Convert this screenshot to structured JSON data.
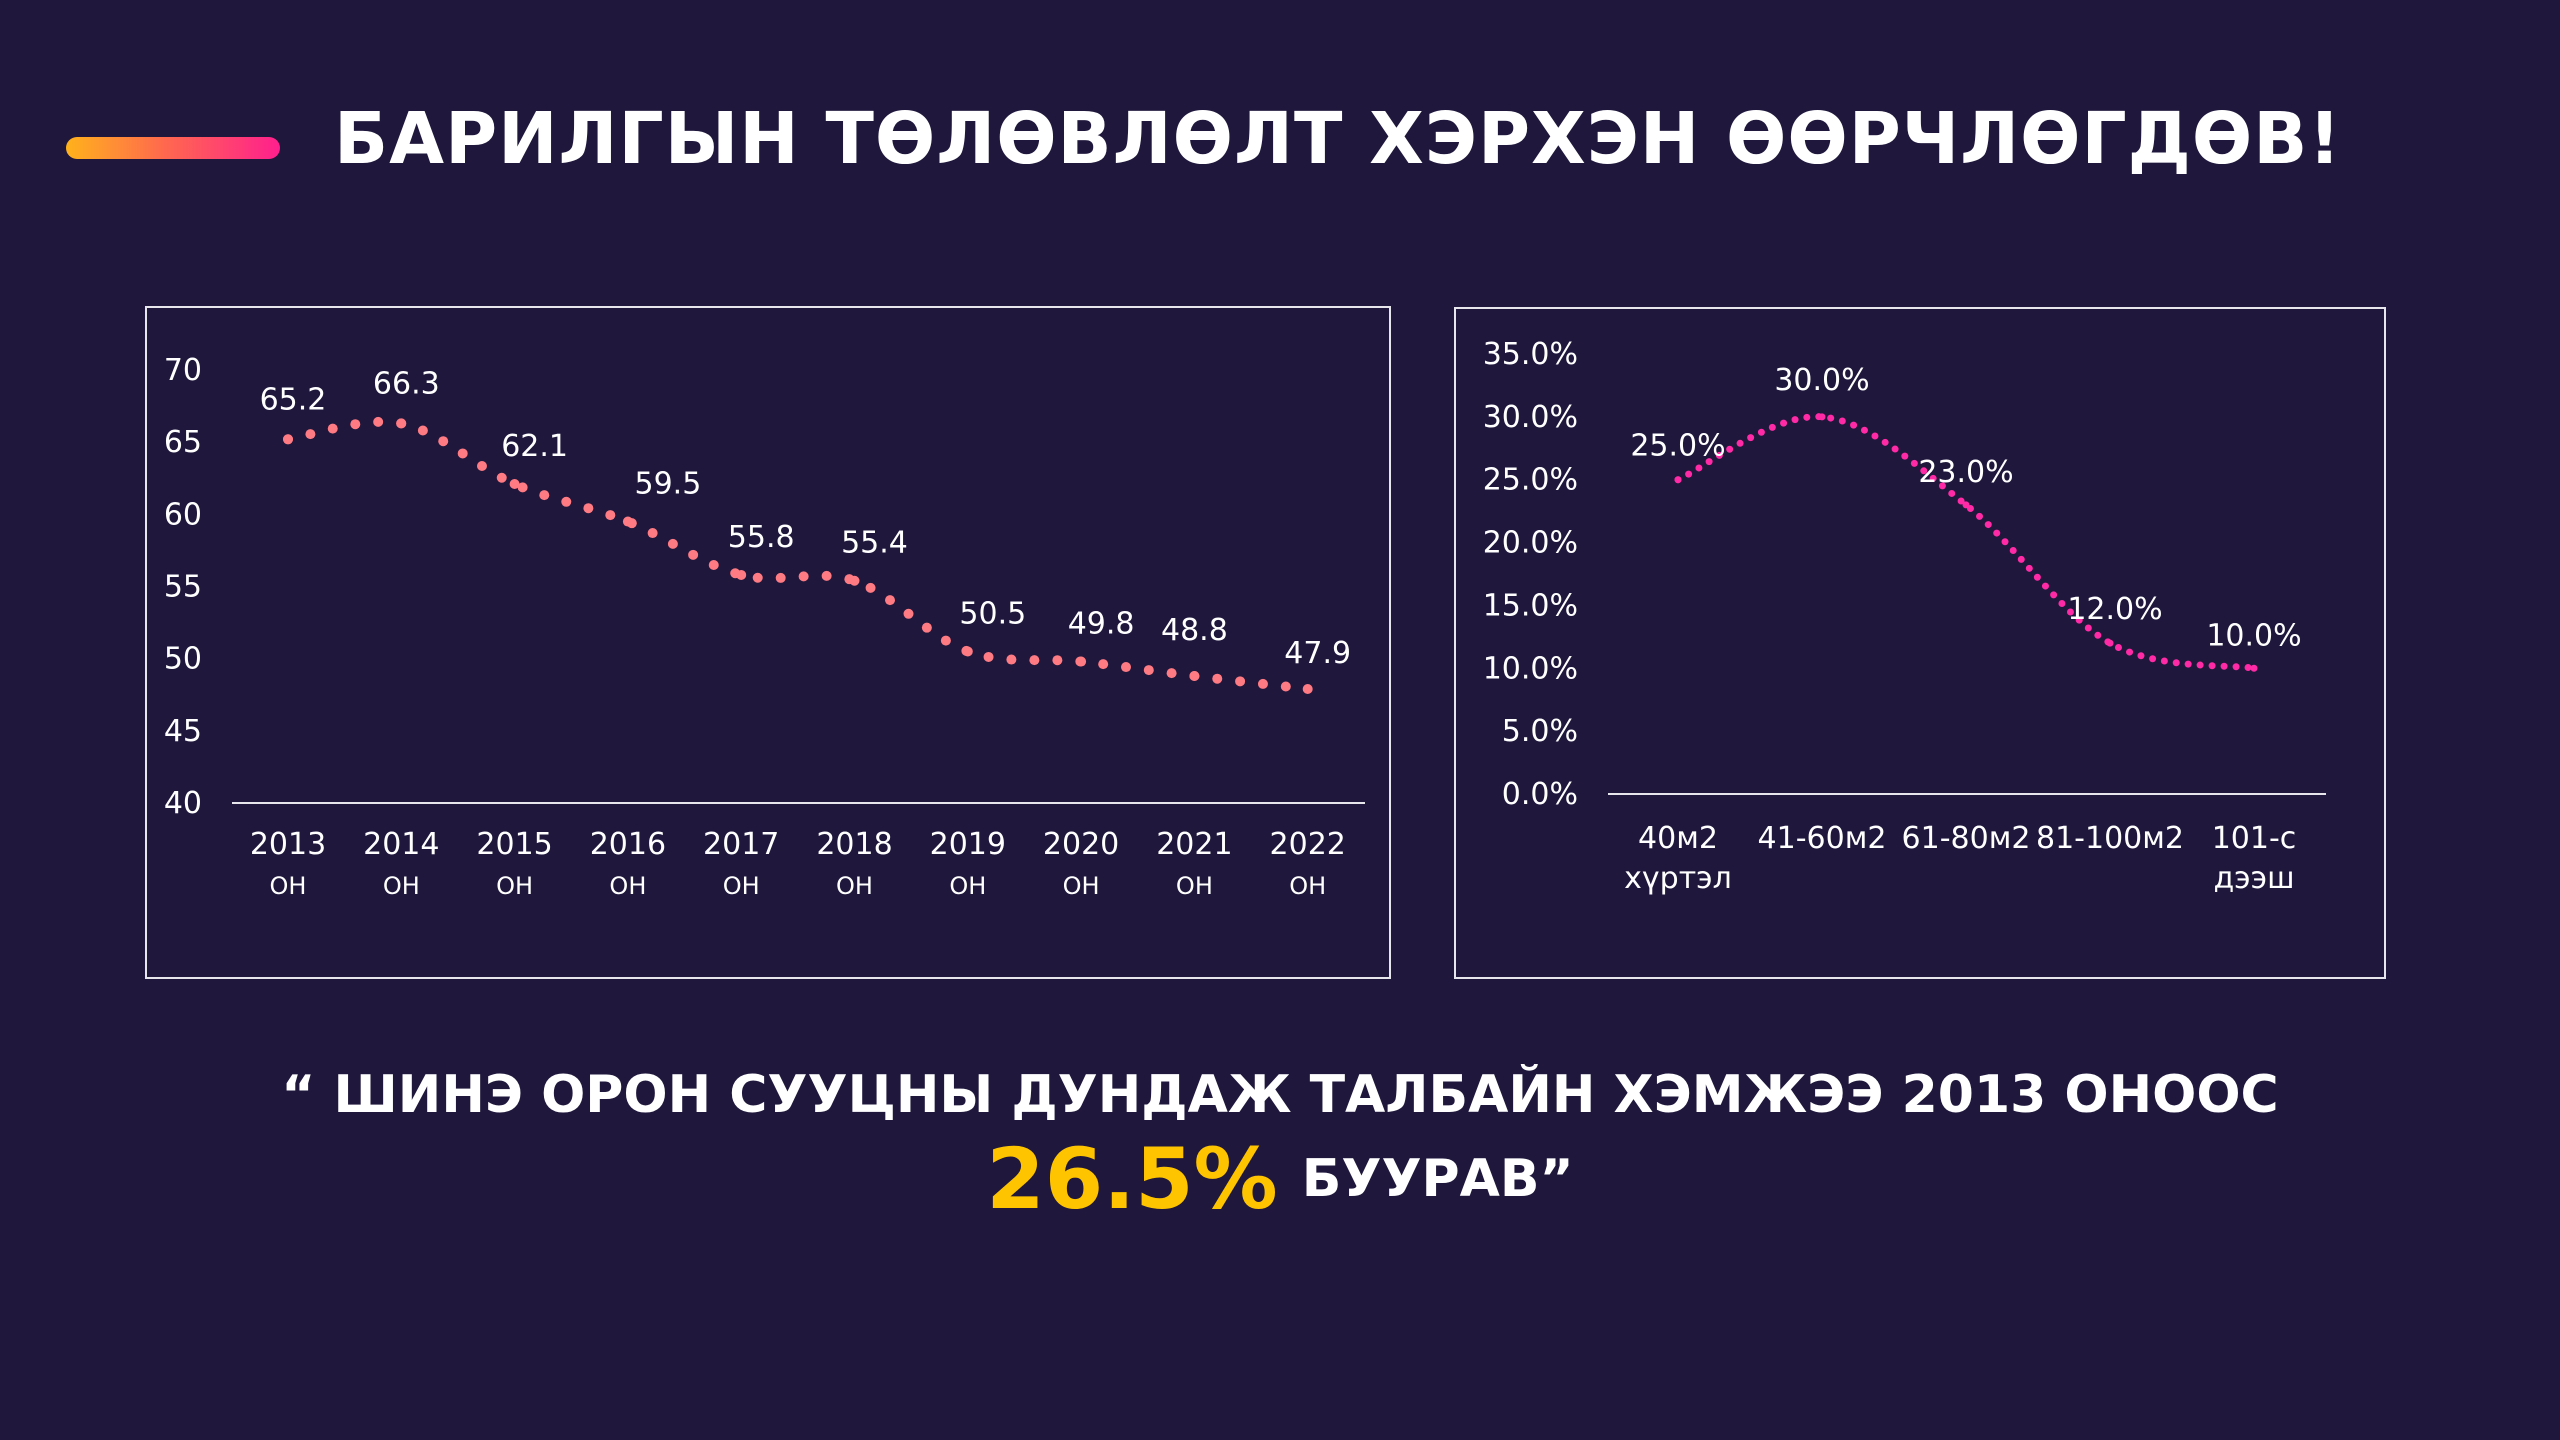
{
  "header": {
    "title": "БАРИЛГЫН ТӨЛӨВЛӨЛТ ХЭРХЭН ӨӨРЧЛӨГДӨВ!"
  },
  "colors": {
    "background": "#1f173c",
    "left_series": "#ff7b84",
    "right_series": "#ff2aa6",
    "highlight": "#ffc400"
  },
  "chart_data": [
    {
      "type": "line",
      "line_style": "dotted",
      "categories": [
        "2013",
        "2014",
        "2015",
        "2016",
        "2017",
        "2018",
        "2019",
        "2020",
        "2021",
        "2022"
      ],
      "category_suffix": "ОН",
      "series": [
        {
          "values": [
            65.2,
            66.3,
            62.1,
            59.5,
            55.8,
            55.4,
            50.5,
            49.8,
            48.8,
            47.9
          ]
        }
      ],
      "data_labels": [
        "65.2",
        "66.3",
        "62.1",
        "59.5",
        "55.8",
        "55.4",
        "50.5",
        "49.8",
        "48.8",
        "47.9"
      ],
      "ylim": [
        40,
        70
      ],
      "yticks": [
        "40",
        "45",
        "50",
        "55",
        "60",
        "65",
        "70"
      ],
      "grid": false,
      "legend": "none"
    },
    {
      "type": "line",
      "line_style": "dotted",
      "categories": [
        [
          "40м2",
          "хүртэл"
        ],
        [
          "41-60м2"
        ],
        [
          "61-80м2"
        ],
        [
          "81-100м2"
        ],
        [
          "101-с",
          "дээш"
        ]
      ],
      "series": [
        {
          "values": [
            25.0,
            30.0,
            23.0,
            12.0,
            10.0
          ]
        }
      ],
      "data_labels": [
        "25.0%",
        "30.0%",
        "23.0%",
        "12.0%",
        "10.0%"
      ],
      "ylim": [
        0,
        35
      ],
      "yticks": [
        "0.0%",
        "5.0%",
        "10.0%",
        "15.0%",
        "20.0%",
        "25.0%",
        "30.0%",
        "35.0%"
      ],
      "grid": false,
      "legend": "none"
    }
  ],
  "quote": {
    "line1": "“ ШИНЭ ОРОН СУУЦНЫ ДУНДАЖ ТАЛБАЙН ХЭМЖЭЭ 2013 ОНООС",
    "highlight": "26.5%",
    "line2_rest": "БУУРАВ”"
  }
}
